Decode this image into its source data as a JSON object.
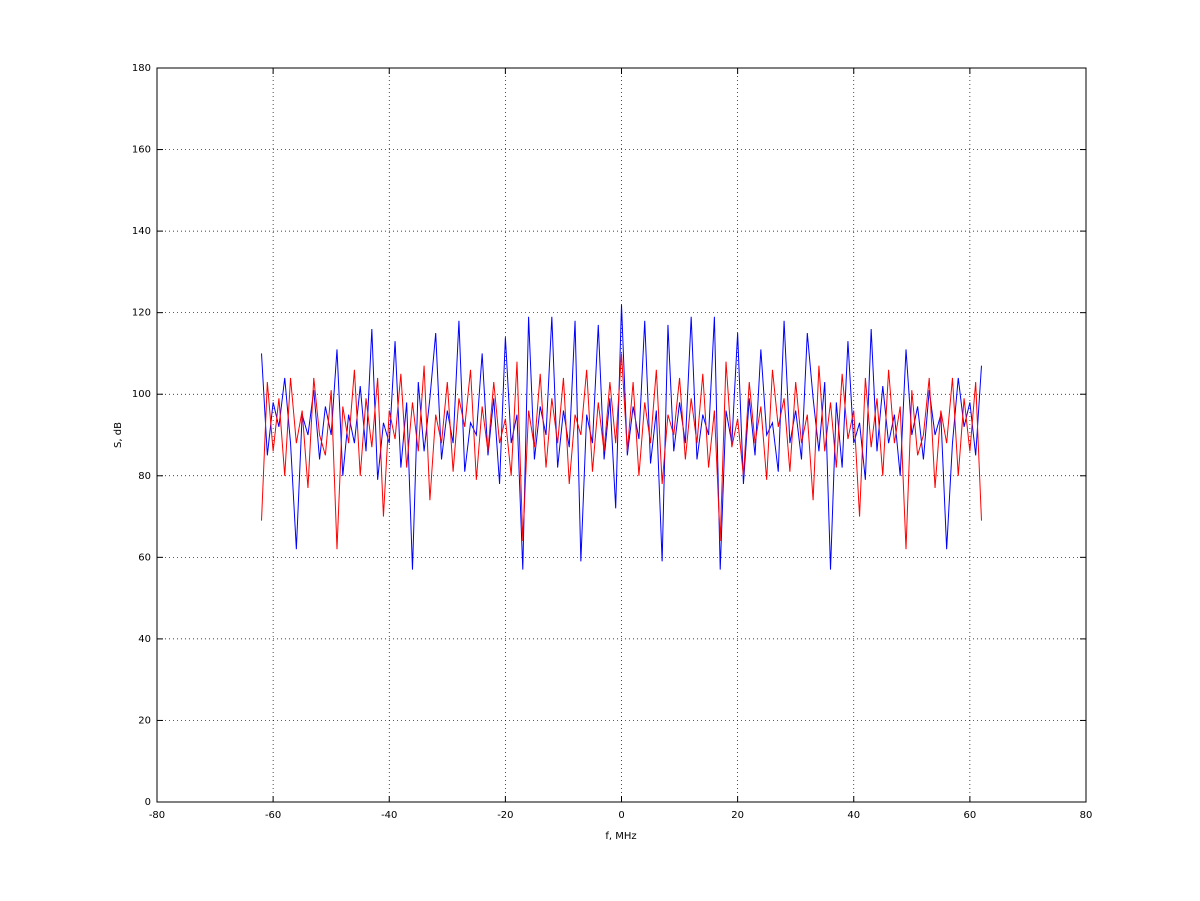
{
  "chart_data": {
    "type": "line",
    "xlabel": "f, MHz",
    "ylabel": "S, dB",
    "x": [
      -62,
      -61,
      -60,
      -59,
      -58,
      -57,
      -56,
      -55,
      -54,
      -53,
      -52,
      -51,
      -50,
      -49,
      -48,
      -47,
      -46,
      -45,
      -44,
      -43,
      -42,
      -41,
      -40,
      -39,
      -38,
      -37,
      -36,
      -35,
      -34,
      -33,
      -32,
      -31,
      -30,
      -29,
      -28,
      -27,
      -26,
      -25,
      -24,
      -23,
      -22,
      -21,
      -20,
      -19,
      -18,
      -17,
      -16,
      -15,
      -14,
      -13,
      -12,
      -11,
      -10,
      -9,
      -8,
      -7,
      -6,
      -5,
      -4,
      -3,
      -2,
      -1,
      0,
      1,
      2,
      3,
      4,
      5,
      6,
      7,
      8,
      9,
      10,
      11,
      12,
      13,
      14,
      15,
      16,
      17,
      18,
      19,
      20,
      21,
      22,
      23,
      24,
      25,
      26,
      27,
      28,
      29,
      30,
      31,
      32,
      33,
      34,
      35,
      36,
      37,
      38,
      39,
      40,
      41,
      42,
      43,
      44,
      45,
      46,
      47,
      48,
      49,
      50,
      51,
      52,
      53,
      54,
      55,
      56,
      57,
      58,
      59,
      60,
      61,
      62
    ],
    "series": [
      {
        "color": "#0000ff",
        "values": [
          110,
          85,
          98,
          92,
          104,
          88,
          62,
          95,
          90,
          101,
          84,
          97,
          90,
          111,
          80,
          95,
          88,
          102,
          86,
          116,
          79,
          93,
          88,
          113,
          82,
          98,
          57,
          103,
          86,
          99,
          115,
          84,
          96,
          88,
          118,
          81,
          93,
          90,
          110,
          85,
          99,
          78,
          114,
          88,
          95,
          57,
          119,
          84,
          97,
          90,
          119,
          82,
          96,
          87,
          118,
          59,
          95,
          88,
          117,
          84,
          99,
          72,
          122,
          85,
          97,
          89,
          118,
          83,
          96,
          59,
          117,
          86,
          98,
          88,
          119,
          84,
          95,
          90,
          119,
          57,
          96,
          88,
          115,
          78,
          99,
          85,
          111,
          90,
          93,
          81,
          118,
          88,
          96,
          84,
          115,
          99,
          86,
          103,
          57,
          98,
          82,
          113,
          88,
          93,
          79,
          116,
          86,
          102,
          88,
          95,
          80,
          111,
          90,
          97,
          84,
          101,
          90,
          95,
          62,
          88,
          104,
          92,
          98,
          85,
          107
        ]
      },
      {
        "color": "#ff0000",
        "values": [
          69,
          103,
          86,
          99,
          80,
          104,
          88,
          96,
          77,
          104,
          90,
          85,
          101,
          62,
          97,
          88,
          106,
          80,
          99,
          87,
          104,
          70,
          96,
          89,
          105,
          82,
          98,
          86,
          107,
          74,
          95,
          88,
          103,
          81,
          99,
          92,
          106,
          79,
          97,
          86,
          103,
          88,
          94,
          80,
          108,
          64,
          96,
          87,
          105,
          82,
          99,
          88,
          104,
          78,
          95,
          90,
          106,
          81,
          98,
          86,
          103,
          88,
          110,
          86,
          103,
          80,
          98,
          88,
          106,
          78,
          95,
          90,
          104,
          84,
          99,
          88,
          105,
          82,
          96,
          64,
          108,
          87,
          94,
          80,
          103,
          88,
          97,
          79,
          106,
          92,
          99,
          81,
          103,
          88,
          95,
          74,
          107,
          86,
          98,
          82,
          105,
          89,
          96,
          70,
          104,
          87,
          99,
          80,
          106,
          88,
          97,
          62,
          101,
          85,
          90,
          104,
          77,
          96,
          88,
          104,
          80,
          99,
          86,
          103,
          69
        ]
      }
    ],
    "xlim": [
      -80,
      80
    ],
    "xticks": [
      -80,
      -60,
      -40,
      -20,
      0,
      20,
      40,
      60,
      80
    ],
    "ylim": [
      0,
      180
    ],
    "yticks": [
      0,
      20,
      40,
      60,
      80,
      100,
      120,
      140,
      160,
      180
    ],
    "grid": true
  }
}
